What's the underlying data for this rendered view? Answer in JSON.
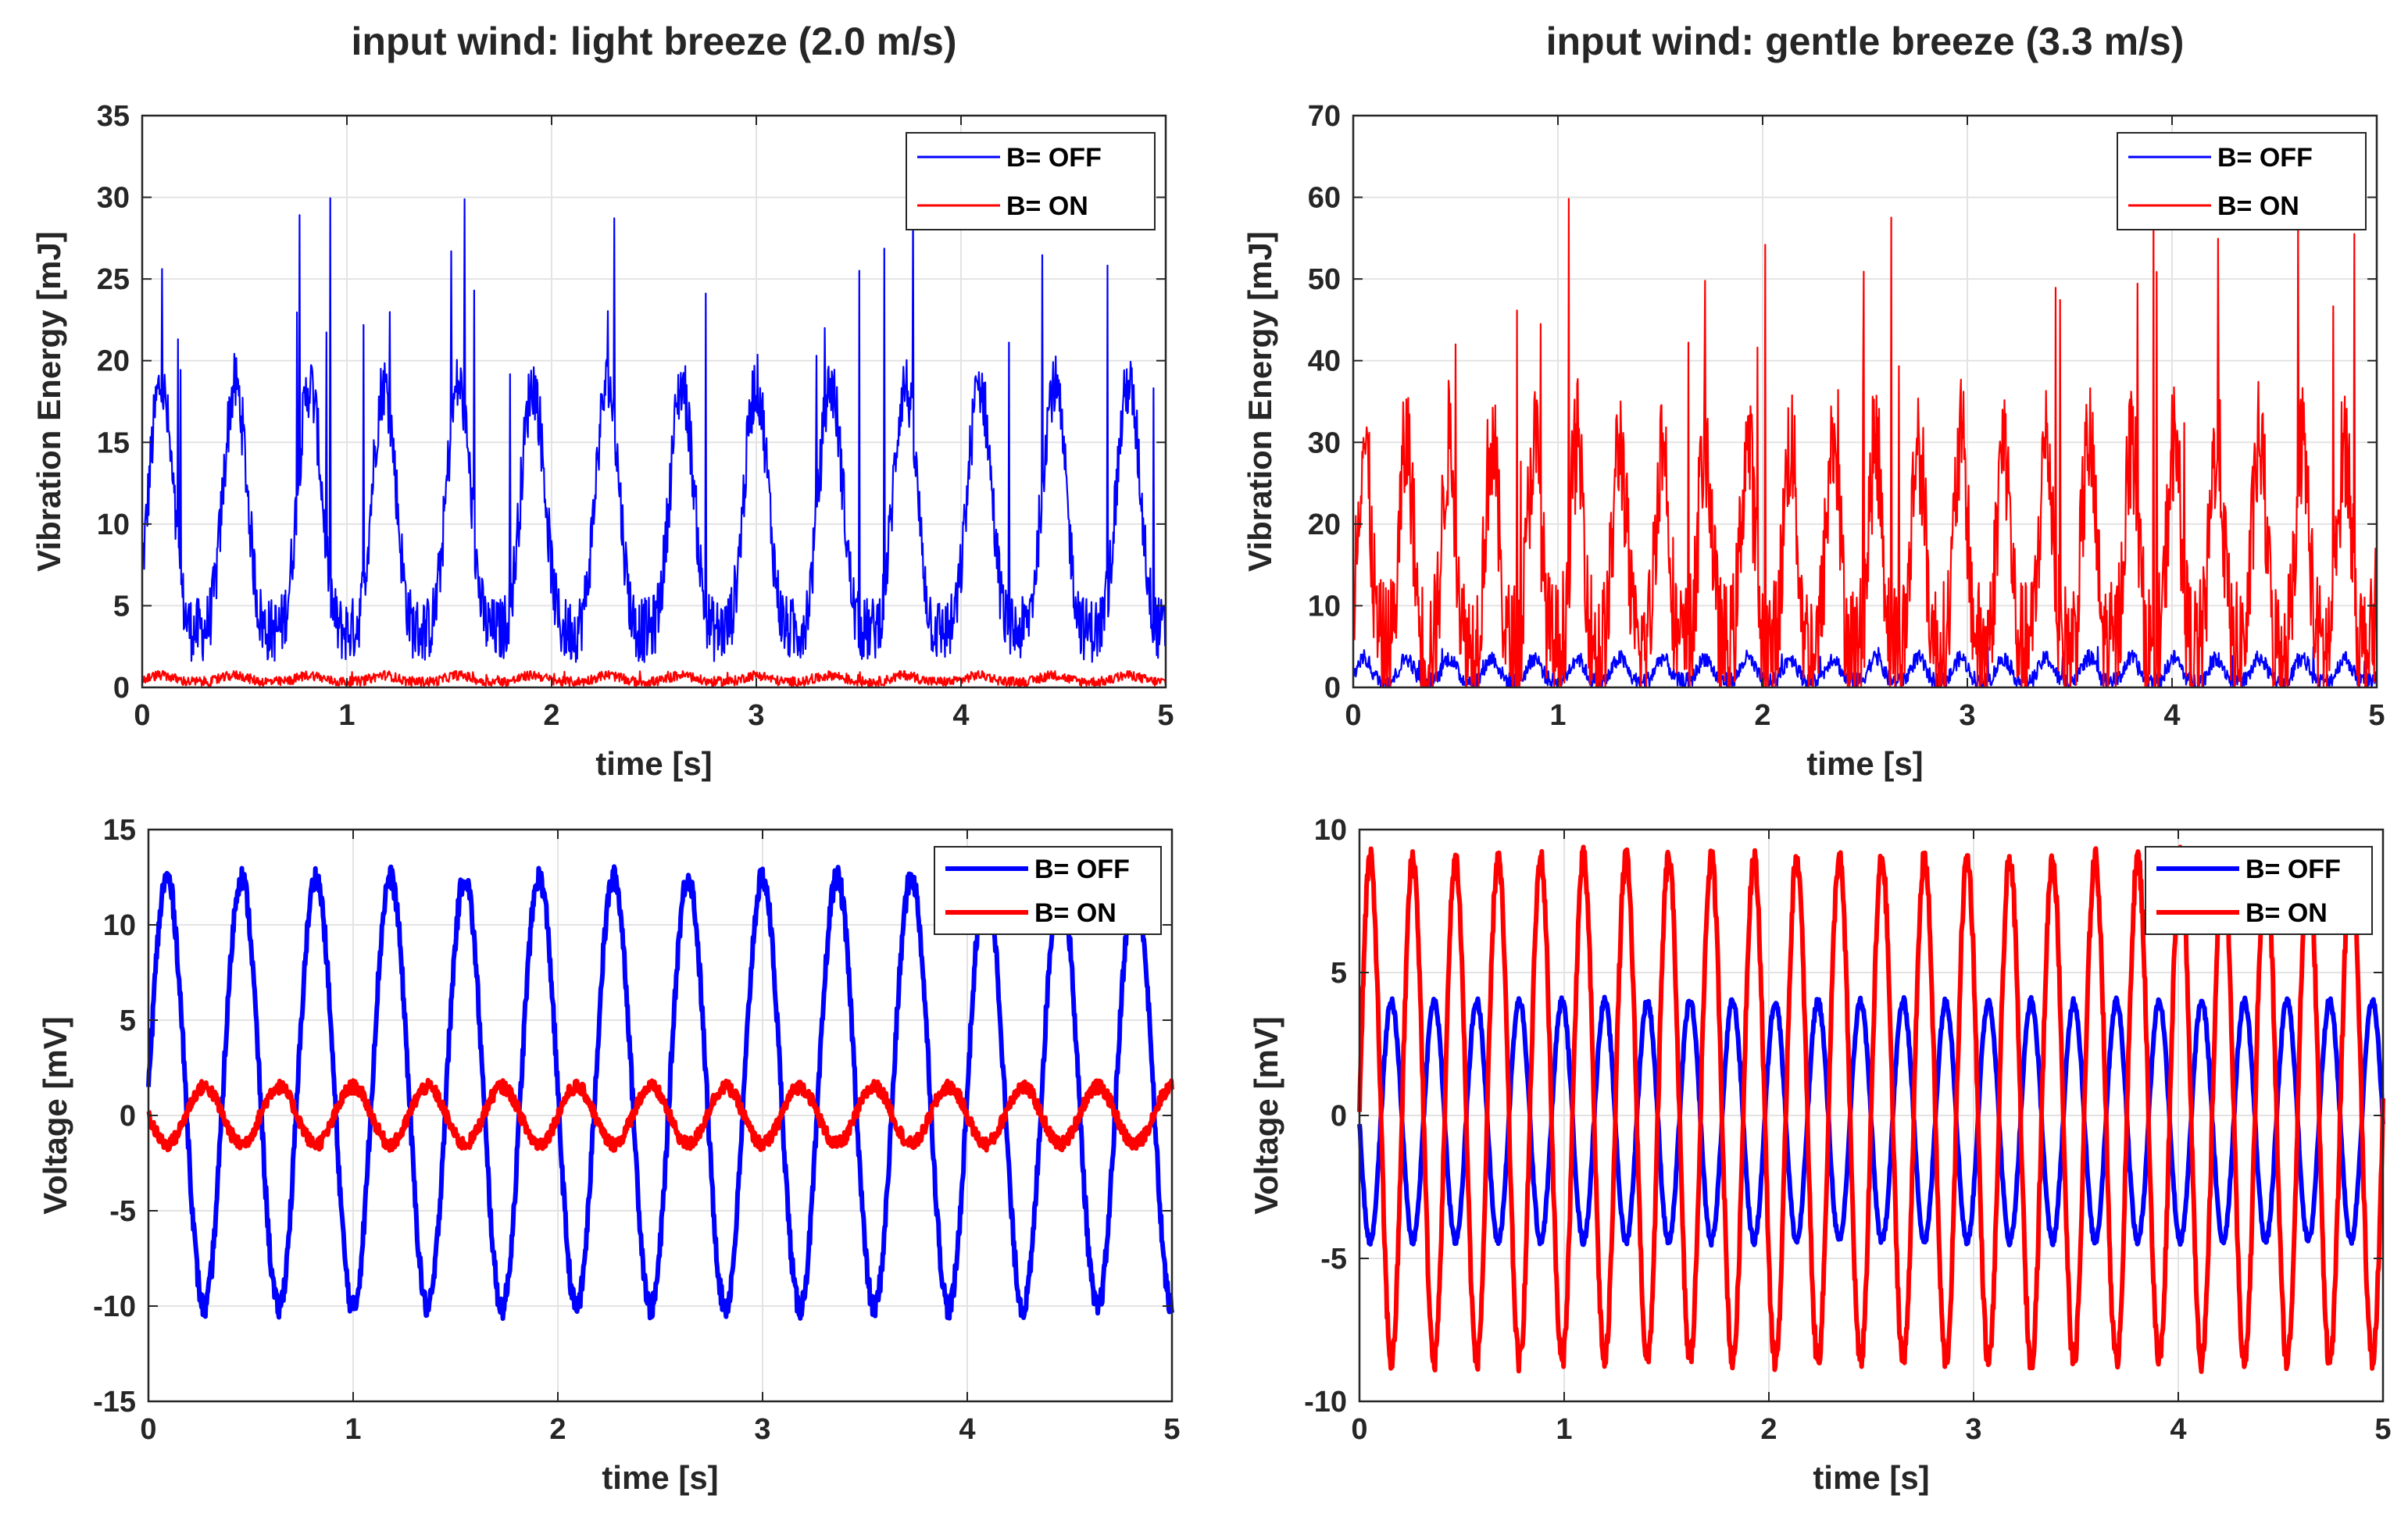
{
  "chart_data": [
    {
      "type": "line",
      "title": "input wind: light breeze (2.0 m/s)",
      "xlabel": "time [s]",
      "ylabel": "Vibration Energy [mJ]",
      "xlim": [
        0,
        5
      ],
      "ylim": [
        0,
        35
      ],
      "xticks": [
        0,
        1,
        2,
        3,
        4,
        5
      ],
      "yticks": [
        0,
        5,
        10,
        15,
        20,
        25,
        30,
        35
      ],
      "grid": true,
      "legend_location": "top-right",
      "series": [
        {
          "name": "B= OFF",
          "color": "#0000ff",
          "baseline": 3.5,
          "amplitude": 15,
          "frequency_hz": 2.75,
          "noise": 2.0,
          "peak_max": 30.5
        },
        {
          "name": "B= ON",
          "color": "#ff0000",
          "baseline": 0.35,
          "amplitude": 0.4,
          "frequency_hz": 2.75,
          "noise": 0.3,
          "peak_max": 1.0
        }
      ]
    },
    {
      "type": "line",
      "title": "input wind: gentle breeze (3.3 m/s)",
      "xlabel": "time [s]",
      "ylabel": "Vibration Energy [mJ]",
      "xlim": [
        0,
        5
      ],
      "ylim": [
        0,
        70
      ],
      "xticks": [
        0,
        1,
        2,
        3,
        4,
        5
      ],
      "yticks": [
        0,
        10,
        20,
        30,
        40,
        50,
        60,
        70
      ],
      "grid": true,
      "legend_location": "top-right",
      "series": [
        {
          "name": "B= OFF",
          "color": "#0000ff",
          "baseline": 0.8,
          "amplitude": 2.8,
          "frequency_hz": 4.8,
          "noise": 1.0,
          "peak_max": 5.0
        },
        {
          "name": "B= ON",
          "color": "#ff0000",
          "baseline": 5,
          "amplitude": 25,
          "frequency_hz": 4.8,
          "noise": 8.0,
          "peak_max": 60
        }
      ]
    },
    {
      "type": "line",
      "title": "",
      "xlabel": "time [s]",
      "ylabel": "Voltage [mV]",
      "xlim": [
        0,
        5
      ],
      "ylim": [
        -15,
        15
      ],
      "xticks": [
        0,
        1,
        2,
        3,
        4,
        5
      ],
      "yticks": [
        -15,
        -10,
        -5,
        0,
        5,
        10,
        15
      ],
      "grid": true,
      "legend_location": "top-right",
      "series": [
        {
          "name": "B= OFF",
          "color": "#0000ff",
          "amplitude": 11.3,
          "offset": 1.2,
          "frequency_hz": 2.75,
          "phase_deg": 0,
          "noise": 0.6
        },
        {
          "name": "B= ON",
          "color": "#ff0000",
          "amplitude": 1.5,
          "offset": 0.0,
          "frequency_hz": 2.75,
          "phase_deg": 180,
          "noise": 0.35
        }
      ]
    },
    {
      "type": "line",
      "title": "",
      "xlabel": "time [s]",
      "ylabel": "Voltage [mV]",
      "xlim": [
        0,
        5
      ],
      "ylim": [
        -10,
        10
      ],
      "xticks": [
        0,
        1,
        2,
        3,
        4,
        5
      ],
      "yticks": [
        -10,
        -5,
        0,
        5,
        10
      ],
      "grid": true,
      "legend_location": "top-right",
      "series": [
        {
          "name": "B= OFF",
          "color": "#0000ff",
          "amplitude": 4.2,
          "offset": -0.2,
          "frequency_hz": 4.8,
          "phase_deg": 180,
          "noise": 0.15
        },
        {
          "name": "B= ON",
          "color": "#ff0000",
          "amplitude": 8.8,
          "offset": 0.2,
          "frequency_hz": 4.8,
          "phase_deg": 0,
          "noise": 0.4
        }
      ]
    }
  ]
}
